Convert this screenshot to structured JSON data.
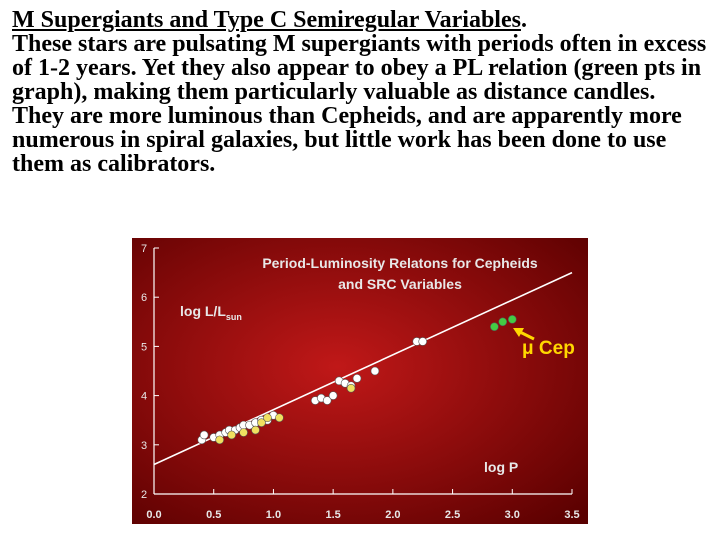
{
  "heading": {
    "title": "M Supergiants and Type C Semiregular Variables",
    "title_end": ".",
    "paragraph": "These stars are pulsating M supergiants with periods often in excess of 1-2 years. Yet they also appear to obey a PL relation (green pts in graph), making them particularly valuable as distance candles. They are more luminous than Cepheids, and are apparently more numerous in spiral galaxies, but little work has been done to use them as calibrators."
  },
  "chart_data": {
    "type": "scatter",
    "title_line1": "Period-Luminosity Relatons for Cepheids",
    "title_line2": "and SRC Variables",
    "ylabel_main": "log L/L",
    "ylabel_sub": "sun",
    "xlabel": "log P",
    "annotation": "μ Cep",
    "xlim": [
      0.0,
      3.5
    ],
    "ylim": [
      2,
      7
    ],
    "x_ticks": [
      "0.0",
      "0.5",
      "1.0",
      "1.5",
      "2.0",
      "2.5",
      "3.0",
      "3.5"
    ],
    "y_ticks": [
      "2",
      "3",
      "4",
      "5",
      "6",
      "7"
    ],
    "fit_line": {
      "x": [
        0.0,
        3.5
      ],
      "y": [
        2.6,
        6.5
      ]
    },
    "series": [
      {
        "color": "#ffffff",
        "points": [
          [
            0.4,
            3.1
          ],
          [
            0.42,
            3.2
          ],
          [
            0.5,
            3.15
          ],
          [
            0.55,
            3.2
          ],
          [
            0.6,
            3.25
          ],
          [
            0.63,
            3.3
          ],
          [
            0.68,
            3.3
          ],
          [
            0.72,
            3.35
          ],
          [
            0.75,
            3.4
          ],
          [
            0.8,
            3.4
          ],
          [
            0.85,
            3.45
          ],
          [
            0.9,
            3.5
          ],
          [
            0.95,
            3.5
          ],
          [
            1.0,
            3.6
          ],
          [
            1.35,
            3.9
          ],
          [
            1.4,
            3.95
          ],
          [
            1.45,
            3.9
          ],
          [
            1.5,
            4.0
          ],
          [
            1.55,
            4.3
          ],
          [
            1.6,
            4.25
          ],
          [
            1.65,
            4.2
          ],
          [
            1.7,
            4.35
          ],
          [
            1.85,
            4.5
          ],
          [
            2.2,
            5.1
          ],
          [
            2.25,
            5.1
          ]
        ]
      },
      {
        "color": "#f0e060",
        "points": [
          [
            0.55,
            3.1
          ],
          [
            0.65,
            3.2
          ],
          [
            0.75,
            3.25
          ],
          [
            0.85,
            3.3
          ],
          [
            0.9,
            3.45
          ],
          [
            0.95,
            3.55
          ],
          [
            1.05,
            3.55
          ],
          [
            1.65,
            4.15
          ]
        ]
      },
      {
        "color": "#44cc44",
        "points": [
          [
            2.85,
            5.4
          ],
          [
            2.92,
            5.5
          ],
          [
            3.0,
            5.55
          ]
        ]
      }
    ],
    "colors": {
      "background_outer": "#5a0000",
      "background_inner": "#c01818",
      "axis": "#ffffff",
      "annotation": "#ffd700",
      "arrow": "#ffd700"
    }
  }
}
